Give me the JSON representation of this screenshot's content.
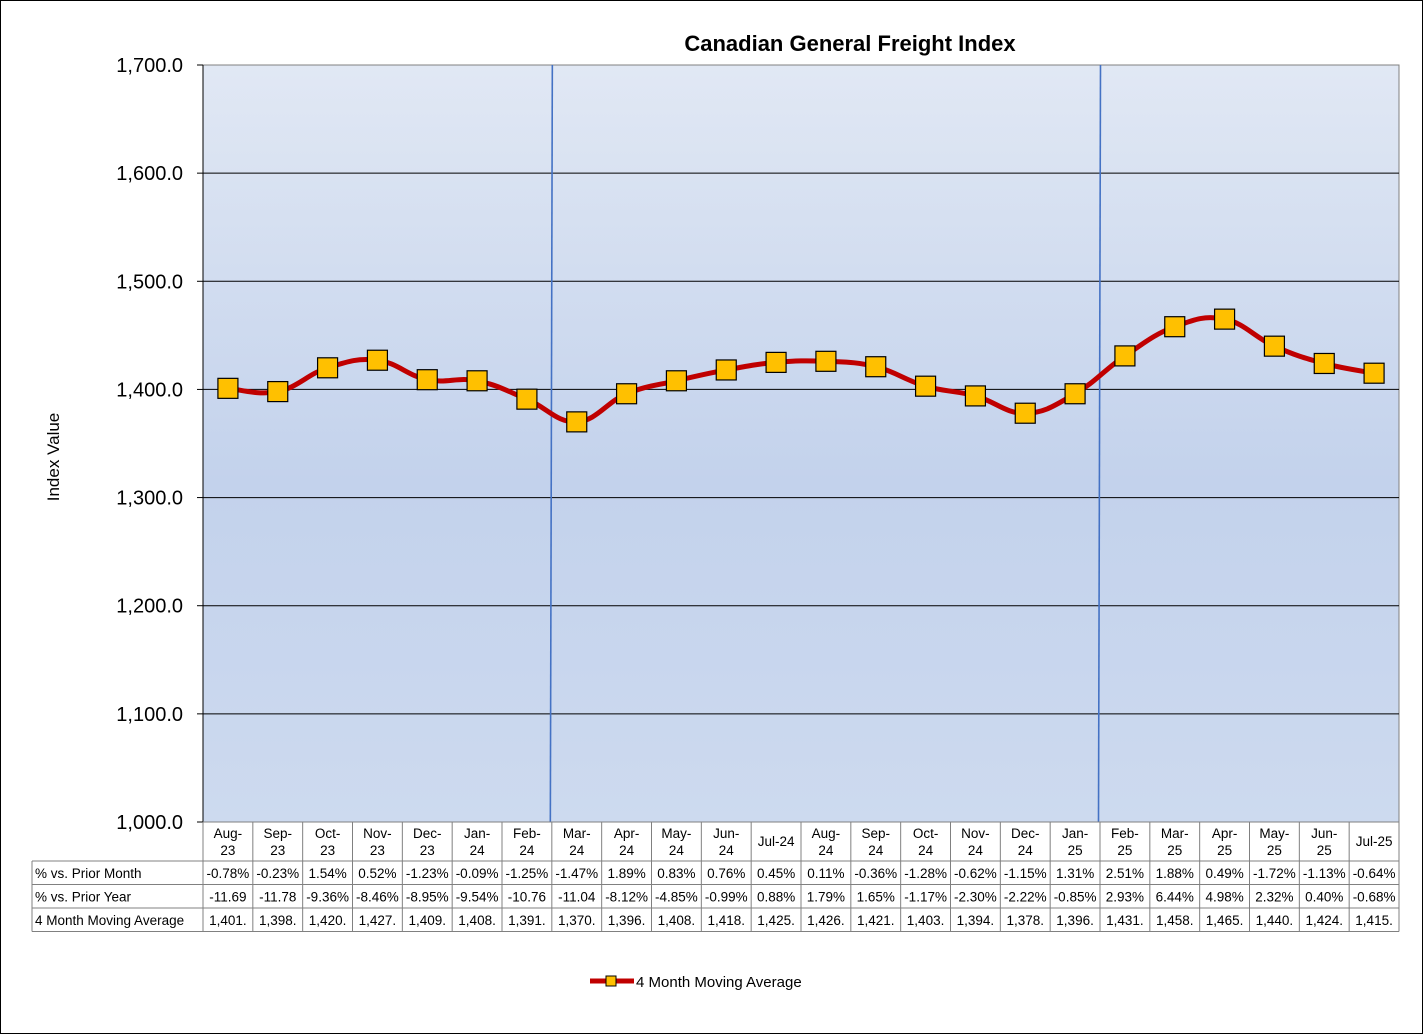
{
  "chart_data": {
    "type": "line",
    "title": "Canadian General Freight Index",
    "ylabel": "Index Value",
    "ylim": [
      1000,
      1700
    ],
    "yticks": [
      "1,000.0",
      "1,100.0",
      "1,200.0",
      "1,300.0",
      "1,400.0",
      "1,500.0",
      "1,600.0",
      "1,700.0"
    ],
    "grid": true,
    "legend_position": "bottom",
    "categories": [
      [
        "Aug-",
        "23"
      ],
      [
        "Sep-",
        "23"
      ],
      [
        "Oct-",
        "23"
      ],
      [
        "Nov-",
        "23"
      ],
      [
        "Dec-",
        "23"
      ],
      [
        "Jan-",
        "24"
      ],
      [
        "Feb-",
        "24"
      ],
      [
        "Mar-",
        "24"
      ],
      [
        "Apr-",
        "24"
      ],
      [
        "May-",
        "24"
      ],
      [
        "Jun-",
        "24"
      ],
      [
        "Jul-24"
      ],
      [
        "Aug-",
        "24"
      ],
      [
        "Sep-",
        "24"
      ],
      [
        "Oct-",
        "24"
      ],
      [
        "Nov-",
        "24"
      ],
      [
        "Dec-",
        "24"
      ],
      [
        "Jan-",
        "25"
      ],
      [
        "Feb-",
        "25"
      ],
      [
        "Mar-",
        "25"
      ],
      [
        "Apr-",
        "25"
      ],
      [
        "May-",
        "25"
      ],
      [
        "Jun-",
        "25"
      ],
      [
        "Jul-25"
      ]
    ],
    "series": [
      {
        "name": "4 Month Moving Average",
        "color": "#C00000",
        "marker_color": "#FFC000",
        "values": [
          1401,
          1398,
          1420,
          1427,
          1409,
          1408,
          1391,
          1370,
          1396,
          1408,
          1418,
          1425,
          1426,
          1421,
          1403,
          1394,
          1378,
          1396,
          1431,
          1458,
          1465,
          1440,
          1424,
          1415
        ]
      }
    ],
    "separators_after_index": [
      6,
      17
    ],
    "separator_color": "#4472C4",
    "table": [
      {
        "label": "% vs. Prior Month",
        "cells": [
          "-0.78%",
          "-0.23%",
          "1.54%",
          "0.52%",
          "-1.23%",
          "-0.09%",
          "-1.25%",
          "-1.47%",
          "1.89%",
          "0.83%",
          "0.76%",
          "0.45%",
          "0.11%",
          "-0.36%",
          "-1.28%",
          "-0.62%",
          "-1.15%",
          "1.31%",
          "2.51%",
          "1.88%",
          "0.49%",
          "-1.72%",
          "-1.13%",
          "-0.64%"
        ]
      },
      {
        "label": "% vs. Prior Year",
        "cells": [
          "-11.69",
          "-11.78",
          "-9.36%",
          "-8.46%",
          "-8.95%",
          "-9.54%",
          "-10.76",
          "-11.04",
          "-8.12%",
          "-4.85%",
          "-0.99%",
          "0.88%",
          "1.79%",
          "1.65%",
          "-1.17%",
          "-2.30%",
          "-2.22%",
          "-0.85%",
          "2.93%",
          "6.44%",
          "4.98%",
          "2.32%",
          "0.40%",
          "-0.68%"
        ]
      },
      {
        "label": "4 Month Moving Average",
        "cells": [
          "1,401.",
          "1,398.",
          "1,420.",
          "1,427.",
          "1,409.",
          "1,408.",
          "1,391.",
          "1,370.",
          "1,396.",
          "1,408.",
          "1,418.",
          "1,425.",
          "1,426.",
          "1,421.",
          "1,403.",
          "1,394.",
          "1,378.",
          "1,396.",
          "1,431.",
          "1,458.",
          "1,465.",
          "1,440.",
          "1,424.",
          "1,415."
        ]
      }
    ],
    "legend": {
      "label": "4 Month Moving Average"
    }
  }
}
